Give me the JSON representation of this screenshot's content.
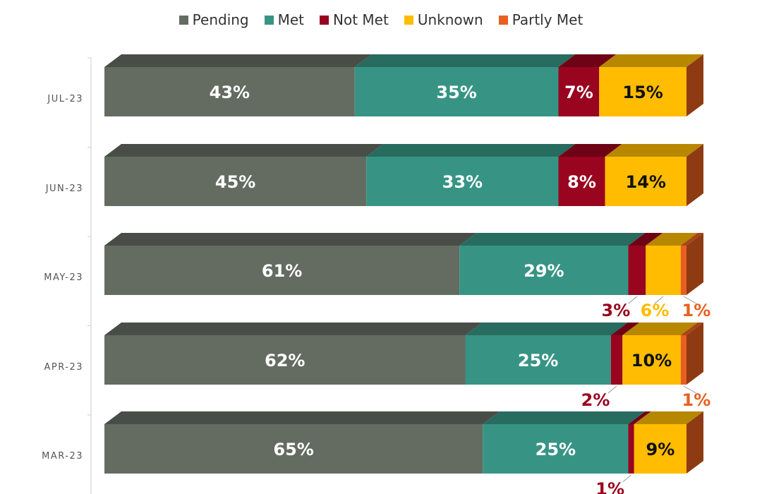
{
  "chart_data": {
    "type": "bar",
    "orientation": "horizontal",
    "stacked": true,
    "normalized_percent": true,
    "style": "3d",
    "legend_position": "top-center",
    "categories": [
      "JUL-23",
      "JUN-23",
      "MAY-23",
      "APR-23",
      "MAR-23"
    ],
    "series": [
      {
        "name": "Pending",
        "color": "#646C62",
        "values": [
          43,
          45,
          61,
          62,
          65
        ]
      },
      {
        "name": "Met",
        "color": "#379484",
        "values": [
          35,
          33,
          29,
          25,
          25
        ]
      },
      {
        "name": "Not Met",
        "color": "#99041E",
        "values": [
          7,
          8,
          3,
          2,
          1
        ]
      },
      {
        "name": "Unknown",
        "color": "#FFBC00",
        "values": [
          15,
          14,
          6,
          10,
          9
        ]
      },
      {
        "name": "Partly Met",
        "color": "#E8601F",
        "values": [
          0,
          0,
          1,
          1,
          0
        ]
      }
    ],
    "data_label_format": "{value}%"
  }
}
